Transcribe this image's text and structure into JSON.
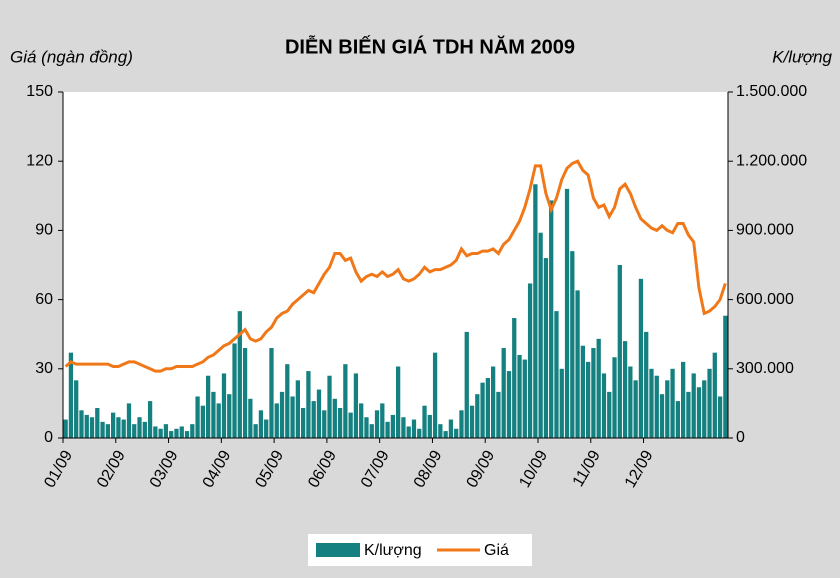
{
  "chart_data": {
    "type": "bar_line",
    "title": "DIỄN BIẾN GIÁ TDH NĂM 2009",
    "y_label": "Giá (ngàn đồng)",
    "y2_label": "K/lượng",
    "categories": [
      "01/09",
      null,
      null,
      null,
      null,
      null,
      null,
      null,
      null,
      null,
      "02/09",
      null,
      null,
      null,
      null,
      null,
      null,
      null,
      null,
      null,
      "03/09",
      null,
      null,
      null,
      null,
      null,
      null,
      null,
      null,
      null,
      "04/09",
      null,
      null,
      null,
      null,
      null,
      null,
      null,
      null,
      null,
      "05/09",
      null,
      null,
      null,
      null,
      null,
      null,
      null,
      null,
      null,
      "06/09",
      null,
      null,
      null,
      null,
      null,
      null,
      null,
      null,
      null,
      "07/09",
      null,
      null,
      null,
      null,
      null,
      null,
      null,
      null,
      null,
      "08/09",
      null,
      null,
      null,
      null,
      null,
      null,
      null,
      null,
      null,
      "09/09",
      null,
      null,
      null,
      null,
      null,
      null,
      null,
      null,
      null,
      "10/09",
      null,
      null,
      null,
      null,
      null,
      null,
      null,
      null,
      null,
      "11/09",
      null,
      null,
      null,
      null,
      null,
      null,
      null,
      null,
      null,
      "12/09",
      null,
      null,
      null,
      null,
      null,
      null,
      null,
      null,
      null,
      null,
      null,
      null,
      null,
      null,
      null
    ],
    "series": [
      {
        "name": "K/lượng",
        "color": "#158080",
        "axis": "y2",
        "kind": "bar",
        "values": [
          80000,
          370000,
          250000,
          120000,
          100000,
          90000,
          130000,
          70000,
          60000,
          110000,
          90000,
          80000,
          150000,
          60000,
          90000,
          70000,
          160000,
          50000,
          40000,
          60000,
          30000,
          40000,
          50000,
          30000,
          60000,
          180000,
          140000,
          270000,
          200000,
          150000,
          280000,
          190000,
          410000,
          550000,
          390000,
          170000,
          60000,
          120000,
          80000,
          390000,
          150000,
          200000,
          320000,
          180000,
          250000,
          130000,
          290000,
          160000,
          210000,
          120000,
          270000,
          170000,
          130000,
          320000,
          110000,
          280000,
          150000,
          90000,
          60000,
          120000,
          150000,
          70000,
          100000,
          310000,
          90000,
          50000,
          80000,
          40000,
          140000,
          100000,
          370000,
          60000,
          30000,
          80000,
          40000,
          120000,
          460000,
          140000,
          190000,
          240000,
          260000,
          310000,
          200000,
          390000,
          290000,
          520000,
          360000,
          340000,
          670000,
          1100000,
          890000,
          780000,
          1030000,
          550000,
          300000,
          1080000,
          810000,
          640000,
          400000,
          330000,
          390000,
          430000,
          280000,
          200000,
          350000,
          750000,
          420000,
          310000,
          250000,
          690000,
          460000,
          300000,
          270000,
          190000,
          250000,
          300000,
          160000,
          330000,
          200000,
          280000,
          220000,
          250000,
          300000,
          370000,
          180000,
          530000
        ]
      },
      {
        "name": "Giá",
        "color": "#f07818",
        "axis": "y",
        "kind": "line",
        "values": [
          31,
          33,
          32,
          32,
          32,
          32,
          32,
          32,
          32,
          31,
          31,
          32,
          33,
          33,
          32,
          31,
          30,
          29,
          29,
          30,
          30,
          31,
          31,
          31,
          31,
          32,
          33,
          35,
          36,
          38,
          40,
          41,
          43,
          45,
          47,
          43,
          42,
          43,
          46,
          48,
          52,
          54,
          55,
          58,
          60,
          62,
          64,
          63,
          67,
          71,
          74,
          80,
          80,
          77,
          78,
          72,
          68,
          70,
          71,
          70,
          72,
          70,
          71,
          73,
          69,
          68,
          69,
          71,
          74,
          72,
          73,
          73,
          74,
          75,
          77,
          82,
          79,
          80,
          80,
          81,
          81,
          82,
          80,
          84,
          86,
          90,
          94,
          100,
          108,
          118,
          118,
          106,
          99,
          104,
          112,
          117,
          119,
          120,
          116,
          114,
          104,
          100,
          101,
          96,
          100,
          108,
          110,
          106,
          100,
          95,
          93,
          91,
          90,
          92,
          90,
          89,
          93,
          93,
          88,
          85,
          65,
          54,
          55,
          57,
          60,
          67
        ]
      }
    ],
    "ylim": [
      0,
      150
    ],
    "yticks": [
      0,
      30,
      60,
      90,
      120,
      150
    ],
    "y2lim": [
      0,
      1500000
    ],
    "y2ticks": [
      0,
      {
        "value": 300000,
        "label": "300.000"
      },
      {
        "value": 600000,
        "label": "600.000"
      },
      {
        "value": 900000,
        "label": "900.000"
      },
      {
        "value": 1200000,
        "label": "1.200.000"
      },
      {
        "value": 1500000,
        "label": "1.500.000"
      }
    ],
    "legend": "bottom"
  }
}
